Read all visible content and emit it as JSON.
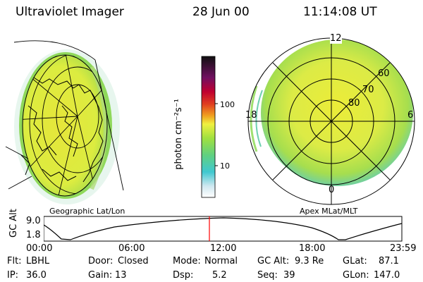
{
  "header": {
    "title": "Ultraviolet Imager",
    "date": "28 Jun 00",
    "time": "11:14:08 UT"
  },
  "colorbar": {
    "unit_label": "photon cm⁻²s⁻¹",
    "ticks": [
      "100",
      "10"
    ]
  },
  "left_panel": {
    "caption": "Geographic Lat/Lon"
  },
  "right_panel": {
    "caption": "Apex MLat/MLT",
    "mlt_labels": [
      "12",
      "18",
      "6",
      "0"
    ],
    "lat_labels": [
      "60",
      "70",
      "80"
    ]
  },
  "altitude_plot": {
    "ylabel": "GC Alt",
    "yticks": [
      "9.0",
      "1.8"
    ],
    "xticks": [
      "00:00",
      "06:00",
      "12:00",
      "18:00",
      "23:59"
    ],
    "marker_color": "#ff0000"
  },
  "info_row1": [
    {
      "label": "Flt:",
      "value": "LBHL"
    },
    {
      "label": "Door:",
      "value": "Closed"
    },
    {
      "label": "Mode:",
      "value": "Normal"
    },
    {
      "label": "GC Alt:",
      "value": "9.3 Re"
    },
    {
      "label": "GLat:",
      "value": "87.1"
    }
  ],
  "info_row2": [
    {
      "label": "IP:",
      "value": "36.0"
    },
    {
      "label": "Gain:",
      "value": "13"
    },
    {
      "label": "Dsp:",
      "value": "5.2"
    },
    {
      "label": "Seq:",
      "value": "39"
    },
    {
      "label": "GLon:",
      "value": "147.0"
    }
  ]
}
